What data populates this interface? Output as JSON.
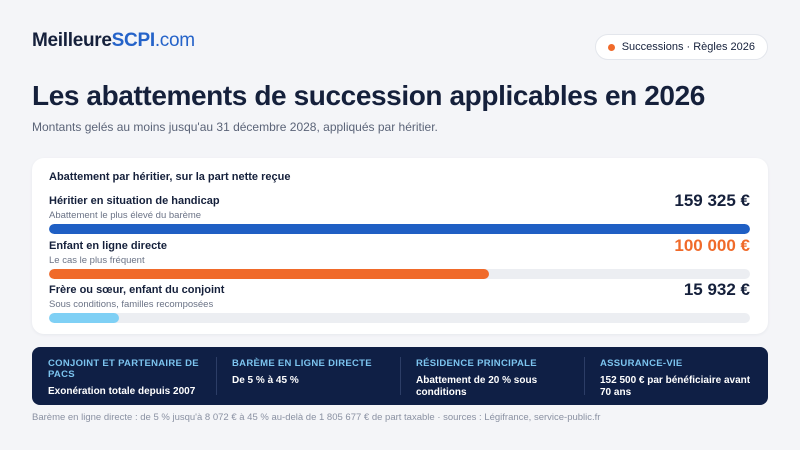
{
  "brand": {
    "name_part1": "Meilleure",
    "name_part2": "SCPI",
    "tld": ".com"
  },
  "badge": {
    "label": "Successions · Règles 2026",
    "dot_color": "#f06a2a"
  },
  "header": {
    "title": "Les abattements de succession applicables en 2026",
    "subtitle": "Montants gelés au moins jusqu'au 31 décembre 2028, appliqués par héritier."
  },
  "card": {
    "title": "Abattement par héritier, sur la part nette reçue",
    "rows": [
      {
        "label": "Héritier en situation de handicap",
        "sub": "Abattement le plus élevé du barème",
        "value_text": "159 325 €",
        "value": 159325,
        "color": "#1f5fc4"
      },
      {
        "label": "Enfant en ligne directe",
        "sub": "Le cas le plus fréquent",
        "value_text": "100 000 €",
        "value": 100000,
        "color": "#f06a2a"
      },
      {
        "label": "Frère ou sœur, enfant du conjoint",
        "sub": "Sous conditions, familles recomposées",
        "value_text": "15 932 €",
        "value": 15932,
        "color": "#7fd0f5"
      }
    ],
    "max_value": 159325
  },
  "panel": {
    "columns": [
      {
        "heading": "Conjoint et partenaire de PACS",
        "text": "Exonération totale depuis 2007"
      },
      {
        "heading": "Barème en ligne directe",
        "text": "De 5 % à 45 %"
      },
      {
        "heading": "Résidence principale",
        "text": "Abattement de 20 % sous conditions"
      },
      {
        "heading": "Assurance-vie",
        "text": "152 500 € par bénéficiaire avant 70 ans"
      }
    ]
  },
  "footer": {
    "text": "Barème en ligne directe : de 5 % jusqu'à 8 072 € à 45 % au-delà de 1 805 677 € de part taxable · sources : Légifrance, service-public.fr"
  }
}
